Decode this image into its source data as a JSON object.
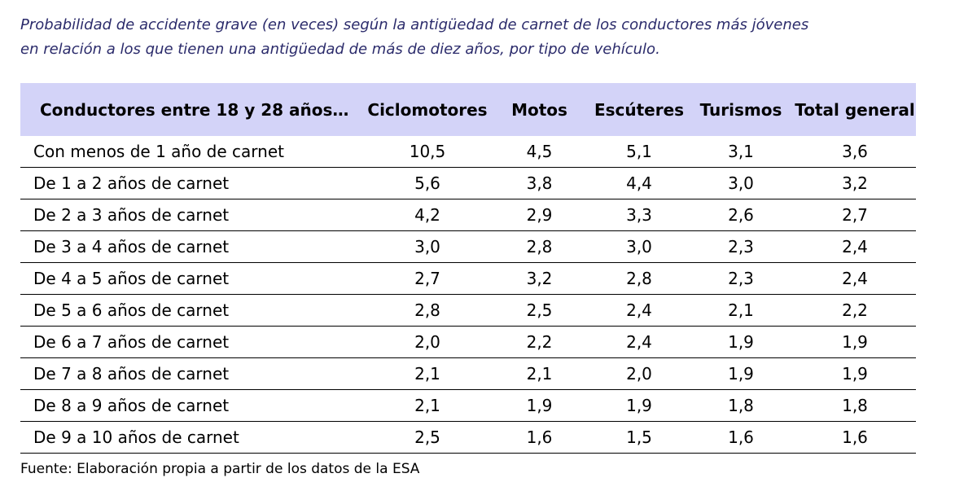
{
  "title": [
    "Probabilidad de accidente grave (en veces) según la antigüedad de carnet de los conductores más jóvenes",
    "en relación a los que tienen una antigüedad de más de diez años, por tipo de vehículo."
  ],
  "table": {
    "header": [
      "Conductores entre 18 y 28 años…",
      "Ciclomotores",
      "Motos",
      "Escúteres",
      "Turismos",
      "Total general"
    ],
    "rows": [
      [
        "Con menos de 1 año de carnet",
        "10,5",
        "4,5",
        "5,1",
        "3,1",
        "3,6"
      ],
      [
        "De 1 a 2 años de carnet",
        "5,6",
        "3,8",
        "4,4",
        "3,0",
        "3,2"
      ],
      [
        "De 2 a 3 años de carnet",
        "4,2",
        "2,9",
        "3,3",
        "2,6",
        "2,7"
      ],
      [
        "De 3 a 4 años de carnet",
        "3,0",
        "2,8",
        "3,0",
        "2,3",
        "2,4"
      ],
      [
        "De 4 a 5 años de carnet",
        "2,7",
        "3,2",
        "2,8",
        "2,3",
        "2,4"
      ],
      [
        "De 5 a 6 años de carnet",
        "2,8",
        "2,5",
        "2,4",
        "2,1",
        "2,2"
      ],
      [
        "De 6 a 7 años de carnet",
        "2,0",
        "2,2",
        "2,4",
        "1,9",
        "1,9"
      ],
      [
        "De 7 a 8 años de carnet",
        "2,1",
        "2,1",
        "2,0",
        "1,9",
        "1,9"
      ],
      [
        "De 8 a 9 años de carnet",
        "2,1",
        "1,9",
        "1,9",
        "1,8",
        "1,8"
      ],
      [
        "De 9 a 10 años de carnet",
        "2,5",
        "1,6",
        "1,5",
        "1,6",
        "1,6"
      ]
    ]
  },
  "source": "Fuente: Elaboración propia a partir de los datos de la ESA"
}
